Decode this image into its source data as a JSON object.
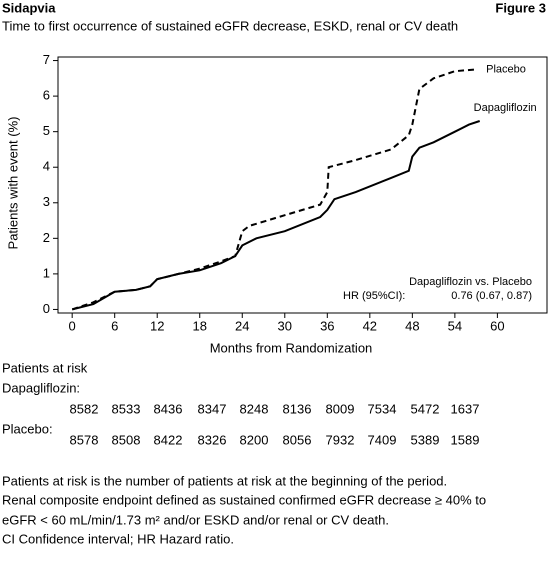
{
  "header": {
    "title": "Sidapvia",
    "figure": "Figure 3"
  },
  "chart_data": {
    "type": "line",
    "title": "Time to first occurrence of sustained eGFR decrease, ESKD, renal or CV death",
    "x_label": "Months from Randomization",
    "y_label": "Patients with event (%)",
    "xlim": [
      -2,
      67
    ],
    "ylim": [
      -0.1,
      7.1
    ],
    "xticks": [
      0,
      6,
      12,
      18,
      24,
      30,
      36,
      42,
      48,
      54,
      60
    ],
    "yticks": [
      0,
      1,
      2,
      3,
      4,
      5,
      6,
      7
    ],
    "series": [
      {
        "name": "Placebo",
        "color": "#000",
        "dash": true,
        "x": [
          0,
          3,
          6,
          9,
          11,
          12,
          15,
          18,
          21,
          23,
          24,
          25,
          30,
          35,
          36,
          36.2,
          40,
          45,
          47.5,
          48,
          49,
          51,
          54,
          57
        ],
        "values": [
          0,
          0.2,
          0.5,
          0.55,
          0.65,
          0.85,
          1.0,
          1.15,
          1.35,
          1.5,
          2.2,
          2.35,
          2.65,
          2.95,
          3.3,
          4.0,
          4.2,
          4.5,
          4.9,
          5.2,
          6.2,
          6.5,
          6.7,
          6.75
        ]
      },
      {
        "name": "Dapagliflozin",
        "color": "#000",
        "dash": false,
        "x": [
          0,
          3,
          6,
          9,
          11,
          12,
          15,
          18,
          21,
          23,
          24,
          26,
          30,
          35,
          36,
          37,
          40,
          45,
          47.5,
          48,
          49,
          51,
          54,
          56,
          57.5
        ],
        "values": [
          0,
          0.15,
          0.5,
          0.55,
          0.65,
          0.85,
          1.0,
          1.1,
          1.3,
          1.5,
          1.8,
          2.0,
          2.2,
          2.6,
          2.8,
          3.1,
          3.3,
          3.7,
          3.9,
          4.3,
          4.55,
          4.7,
          5.0,
          5.2,
          5.3
        ]
      }
    ],
    "annotation": {
      "heading": "Dapagliflozin vs. Placebo",
      "label": "HR (95%CI):",
      "value": "0.76 (0.67, 0.87)"
    }
  },
  "risk_table": {
    "title": "Patients at risk",
    "rows": [
      {
        "label": "Dapagliflozin:",
        "values": [
          8582,
          8533,
          8436,
          8347,
          8248,
          8136,
          8009,
          7534,
          5472,
          1637
        ]
      },
      {
        "label": "Placebo:",
        "values": [
          8578,
          8508,
          8422,
          8326,
          8200,
          8056,
          7932,
          7409,
          5389,
          1589
        ]
      }
    ]
  },
  "notes": [
    "Patients at risk is the number of patients at risk at the beginning of the period.",
    "Renal composite endpoint defined as sustained confirmed eGFR decrease ≥ 40% to",
    "eGFR < 60 mL/min/1.73 m² and/or ESKD and/or renal or CV death.",
    "CI Confidence interval; HR Hazard ratio."
  ]
}
